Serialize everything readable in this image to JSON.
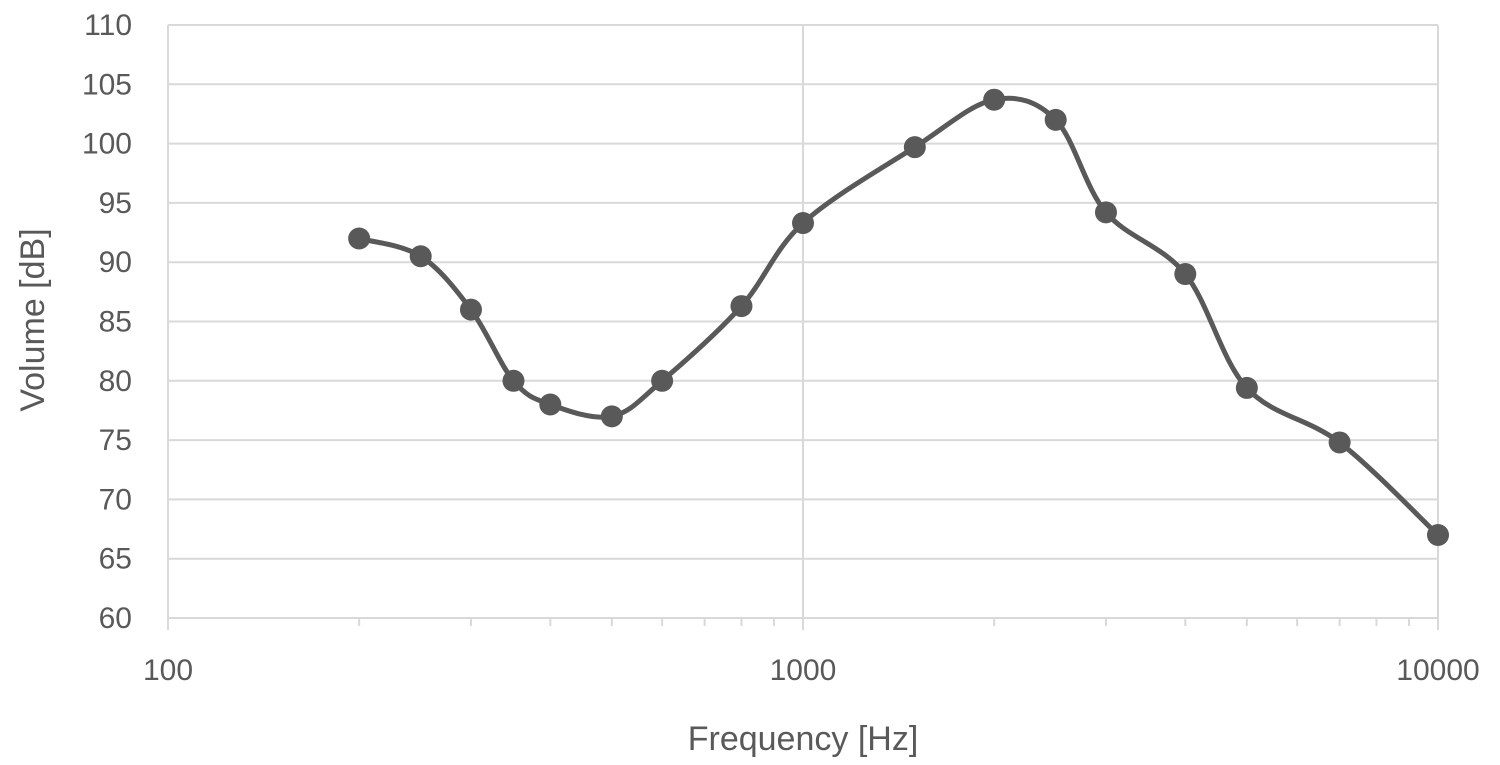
{
  "chart_data": {
    "type": "line",
    "xlabel": "Frequency [Hz]",
    "ylabel": "Volume [dB]",
    "x_scale": "log",
    "xlim": [
      100,
      10000
    ],
    "ylim": [
      60,
      110
    ],
    "x_ticks": [
      "100",
      "1000",
      "10000"
    ],
    "y_ticks": [
      "60",
      "65",
      "70",
      "75",
      "80",
      "85",
      "90",
      "95",
      "100",
      "105",
      "110"
    ],
    "grid": true,
    "smooth": true,
    "series": [
      {
        "x": [
          200,
          250,
          300,
          350,
          400,
          500,
          600,
          800,
          1000,
          1500,
          2000,
          2500,
          3000,
          4000,
          5000,
          7000,
          10000
        ],
        "y": [
          92,
          90.5,
          86,
          80,
          78,
          77,
          80,
          86.3,
          93.3,
          99.7,
          103.7,
          102,
          94.2,
          89,
          79.4,
          74.8,
          67
        ],
        "color": "#595959"
      }
    ],
    "colors": {
      "line": "#595959",
      "grid": "#d9d9d9",
      "text": "#595959"
    }
  }
}
